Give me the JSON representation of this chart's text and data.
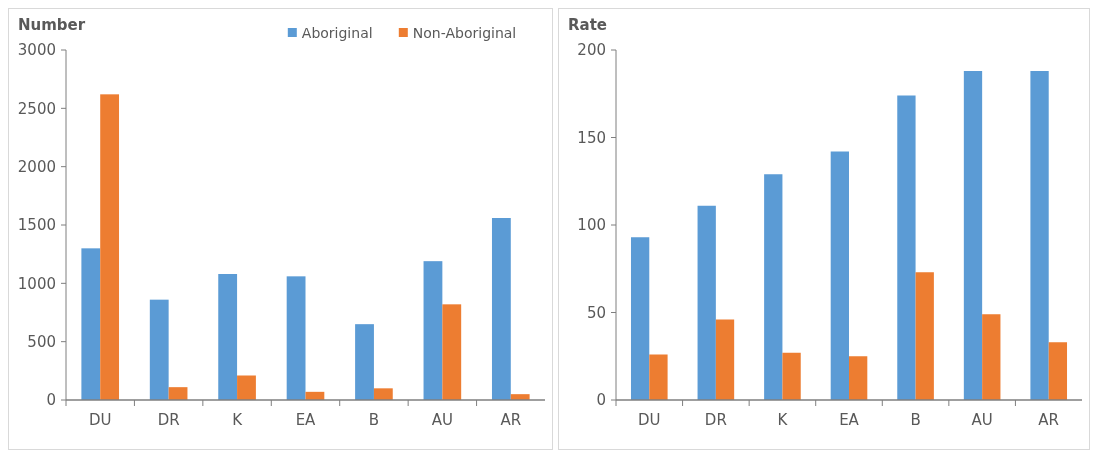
{
  "chart_data": [
    {
      "type": "bar",
      "title": "Number",
      "categories": [
        "DU",
        "DR",
        "K",
        "EA",
        "B",
        "AU",
        "AR"
      ],
      "series": [
        {
          "name": "Aboriginal",
          "color": "#5b9bd5",
          "values": [
            1300,
            860,
            1080,
            1060,
            650,
            1190,
            1560
          ]
        },
        {
          "name": "Non-Aboriginal",
          "color": "#ed7d31",
          "values": [
            2620,
            110,
            210,
            70,
            100,
            820,
            50
          ]
        }
      ],
      "ylim": [
        0,
        3000
      ],
      "yticks": [
        0,
        500,
        1000,
        1500,
        2000,
        2500,
        3000
      ],
      "legend": "top right"
    },
    {
      "type": "bar",
      "title": "Rate",
      "categories": [
        "DU",
        "DR",
        "K",
        "EA",
        "B",
        "AU",
        "AR"
      ],
      "series": [
        {
          "color": "#5b9bd5",
          "values": [
            93,
            111,
            129,
            142,
            174,
            188,
            188
          ]
        },
        {
          "color": "#ed7d31",
          "values": [
            26,
            46,
            27,
            25,
            73,
            49,
            33
          ]
        }
      ],
      "ylim": [
        0,
        200
      ],
      "yticks": [
        0,
        50,
        100,
        150,
        200
      ]
    }
  ]
}
